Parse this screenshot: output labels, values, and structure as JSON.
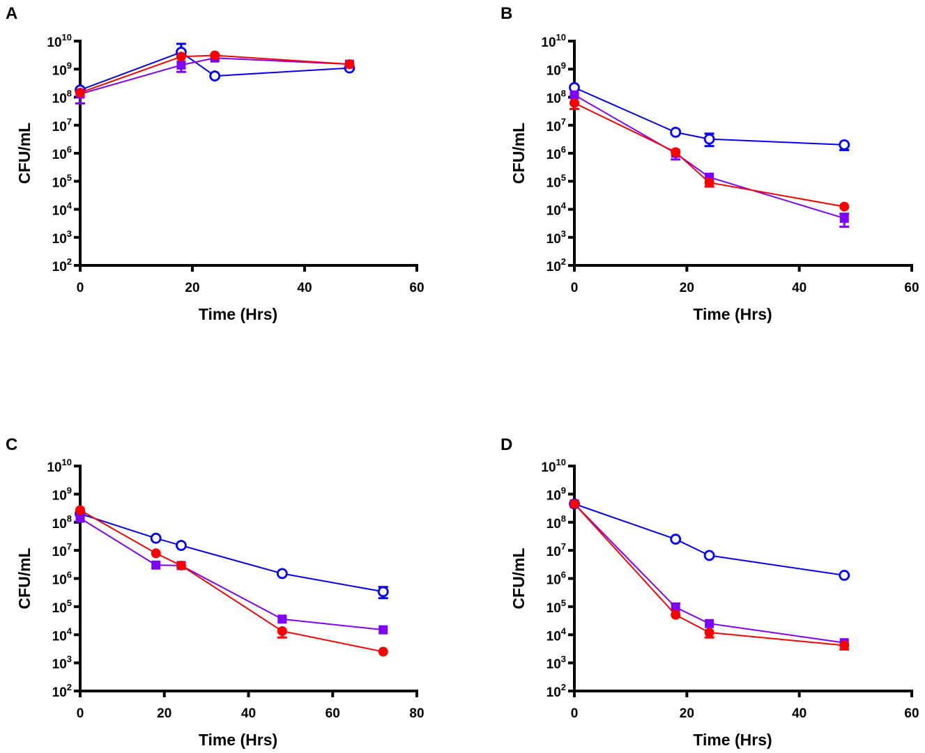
{
  "figure": {
    "series_styles": [
      {
        "key": "s1",
        "color": "#0000FF",
        "marker": "open-circle"
      },
      {
        "key": "s2",
        "color": "#8000FF",
        "marker": "filled-square"
      },
      {
        "key": "s3",
        "color": "#FF0000",
        "marker": "filled-circle"
      }
    ]
  },
  "chart_data": [
    {
      "panel": "A",
      "type": "line",
      "xlabel": "Time (Hrs)",
      "ylabel": "CFU/mL",
      "yscale": "log",
      "xlim": [
        0,
        60
      ],
      "xticks": [
        0,
        20,
        40,
        60
      ],
      "ylim": [
        100.0,
        10000000000.0
      ],
      "yticks_exp": [
        2,
        3,
        4,
        5,
        6,
        7,
        8,
        9,
        10
      ],
      "grid": false,
      "series": [
        {
          "name": "s1",
          "color": "#0000FF",
          "marker": "open-circle",
          "x": [
            0,
            18,
            24,
            48
          ],
          "y": [
            180000000.0,
            4000000000.0,
            570000000.0,
            1100000000.0
          ],
          "err_upper": [
            null,
            8000000000.0,
            null,
            null
          ],
          "err_lower": [
            null,
            null,
            null,
            null
          ]
        },
        {
          "name": "s2",
          "color": "#8000FF",
          "marker": "filled-square",
          "x": [
            0,
            18,
            24,
            48
          ],
          "y": [
            130000000.0,
            1400000000.0,
            2500000000.0,
            1500000000.0
          ],
          "err_upper": [
            null,
            null,
            null,
            null
          ],
          "err_lower": [
            60000000.0,
            800000000.0,
            null,
            null
          ]
        },
        {
          "name": "s3",
          "color": "#FF0000",
          "marker": "filled-circle",
          "x": [
            0,
            18,
            24,
            48
          ],
          "y": [
            145000000.0,
            2800000000.0,
            3100000000.0,
            1500000000.0
          ],
          "err_upper": [
            null,
            null,
            null,
            null
          ],
          "err_lower": [
            null,
            null,
            null,
            null
          ]
        }
      ]
    },
    {
      "panel": "B",
      "type": "line",
      "xlabel": "Time (Hrs)",
      "ylabel": "CFU/mL",
      "yscale": "log",
      "xlim": [
        0,
        60
      ],
      "xticks": [
        0,
        20,
        40,
        60
      ],
      "ylim": [
        100.0,
        10000000000.0
      ],
      "yticks_exp": [
        2,
        3,
        4,
        5,
        6,
        7,
        8,
        9,
        10
      ],
      "grid": false,
      "series": [
        {
          "name": "s1",
          "color": "#0000FF",
          "marker": "open-circle",
          "x": [
            0,
            18,
            24,
            48
          ],
          "y": [
            220000000.0,
            5600000.0,
            3200000.0,
            2000000.0
          ],
          "err_upper": [
            null,
            null,
            5000000.0,
            null
          ],
          "err_lower": [
            null,
            null,
            1800000.0,
            1300000.0
          ]
        },
        {
          "name": "s2",
          "color": "#8000FF",
          "marker": "filled-square",
          "x": [
            0,
            18,
            24,
            48
          ],
          "y": [
            120000000.0,
            1000000.0,
            140000.0,
            4800.0
          ],
          "err_upper": [
            null,
            null,
            null,
            7000.0
          ],
          "err_lower": [
            null,
            600000.0,
            null,
            2400.0
          ]
        },
        {
          "name": "s3",
          "color": "#FF0000",
          "marker": "filled-circle",
          "x": [
            0,
            18,
            24,
            48
          ],
          "y": [
            62000000.0,
            1100000.0,
            90000.0,
            12500.0
          ],
          "err_upper": [
            null,
            null,
            null,
            null
          ],
          "err_lower": [
            38000000.0,
            null,
            65000.0,
            null
          ]
        }
      ]
    },
    {
      "panel": "C",
      "type": "line",
      "xlabel": "Time (Hrs)",
      "ylabel": "CFU/mL",
      "yscale": "log",
      "xlim": [
        0,
        80
      ],
      "xticks": [
        0,
        20,
        40,
        60,
        80
      ],
      "ylim": [
        100.0,
        10000000000.0
      ],
      "yticks_exp": [
        2,
        3,
        4,
        5,
        6,
        7,
        8,
        9,
        10
      ],
      "grid": false,
      "series": [
        {
          "name": "s1",
          "color": "#0000FF",
          "marker": "open-circle",
          "x": [
            0,
            18,
            24,
            48,
            72
          ],
          "y": [
            200000000.0,
            27000000.0,
            15000000.0,
            1500000.0,
            340000.0
          ],
          "err_upper": [
            null,
            null,
            null,
            null,
            500000.0
          ],
          "err_lower": [
            null,
            null,
            null,
            null,
            200000.0
          ]
        },
        {
          "name": "s2",
          "color": "#8000FF",
          "marker": "filled-square",
          "x": [
            0,
            18,
            24,
            48,
            72
          ],
          "y": [
            140000000.0,
            3000000.0,
            2900000.0,
            36000.0,
            15000.0
          ],
          "err_upper": [
            null,
            null,
            null,
            null,
            null
          ],
          "err_lower": [
            null,
            null,
            null,
            null,
            null
          ]
        },
        {
          "name": "s3",
          "color": "#FF0000",
          "marker": "filled-circle",
          "x": [
            0,
            18,
            24,
            48,
            72
          ],
          "y": [
            270000000.0,
            7900000.0,
            2900000.0,
            13500.0,
            2500.0
          ],
          "err_upper": [
            null,
            null,
            null,
            null,
            null
          ],
          "err_lower": [
            null,
            null,
            null,
            8000.0,
            null
          ]
        }
      ]
    },
    {
      "panel": "D",
      "type": "line",
      "xlabel": "Time (Hrs)",
      "ylabel": "CFU/mL",
      "yscale": "log",
      "xlim": [
        0,
        60
      ],
      "xticks": [
        0,
        20,
        40,
        60
      ],
      "ylim": [
        100.0,
        10000000000.0
      ],
      "yticks_exp": [
        2,
        3,
        4,
        5,
        6,
        7,
        8,
        9,
        10
      ],
      "grid": false,
      "series": [
        {
          "name": "s1",
          "color": "#0000FF",
          "marker": "open-circle",
          "x": [
            0,
            18,
            24,
            48
          ],
          "y": [
            450000000.0,
            25000000.0,
            6600000.0,
            1300000.0
          ],
          "err_upper": [
            null,
            null,
            null,
            null
          ],
          "err_lower": [
            null,
            null,
            null,
            null
          ]
        },
        {
          "name": "s2",
          "color": "#8000FF",
          "marker": "filled-square",
          "x": [
            0,
            18,
            24,
            48
          ],
          "y": [
            450000000.0,
            95000.0,
            25000.0,
            5200.0
          ],
          "err_upper": [
            null,
            130000.0,
            null,
            null
          ],
          "err_lower": [
            null,
            null,
            null,
            null
          ]
        },
        {
          "name": "s3",
          "color": "#FF0000",
          "marker": "filled-circle",
          "x": [
            0,
            18,
            24,
            48
          ],
          "y": [
            450000000.0,
            51000.0,
            12000.0,
            4200.0
          ],
          "err_upper": [
            null,
            null,
            null,
            null
          ],
          "err_lower": [
            null,
            null,
            8000.0,
            3000.0
          ]
        }
      ]
    }
  ]
}
